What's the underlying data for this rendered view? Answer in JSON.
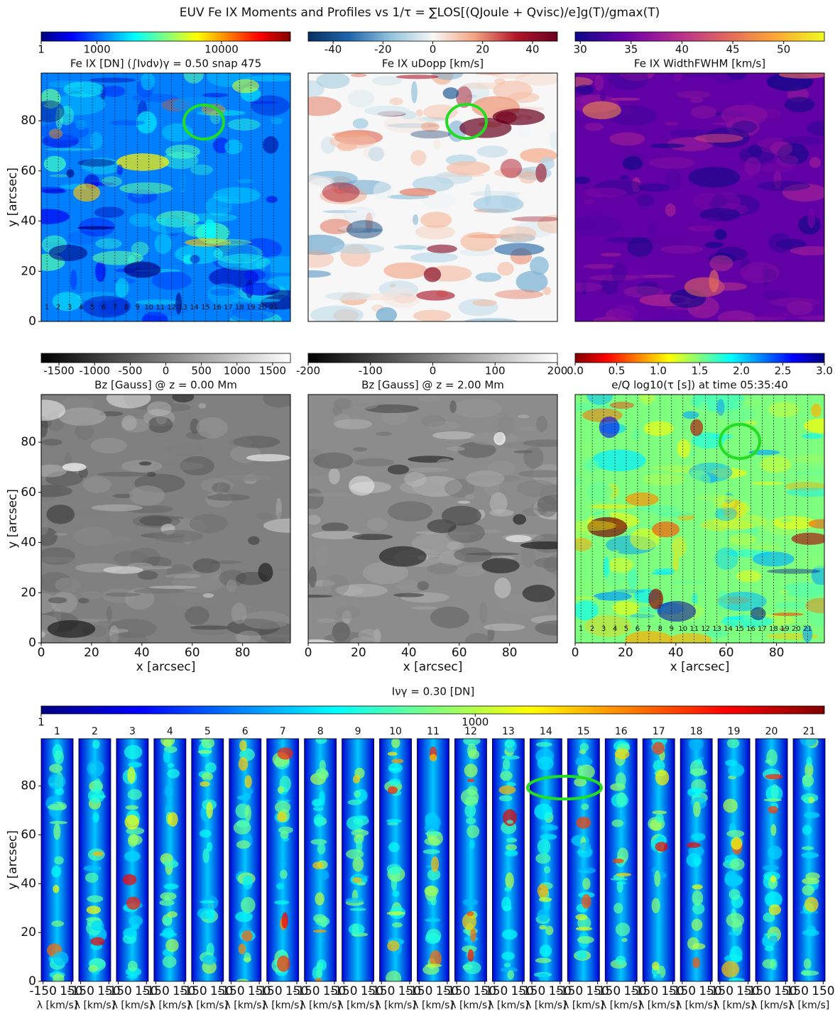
{
  "figure_title": "EUV Fe IX Moments and Profiles vs 1/τ = ∑LOS[(QJoule + Qvisc)/e]g(T)/gmax(T)",
  "chart_data": [
    {
      "type": "image",
      "title": "Fe IX [DN] (∫Iνdν)γ = 0.50 snap 475",
      "colormap": "jet",
      "colorbar": {
        "lim": [
          1,
          19000
        ],
        "gamma": 0.5,
        "ticks": [
          1,
          1000,
          10000
        ]
      },
      "xlim": [
        0,
        99
      ],
      "ylim": [
        0,
        99
      ],
      "yticks": [
        0,
        20,
        40,
        60,
        80
      ],
      "ylabel": "y [arcsec]",
      "slit_labels": [
        1,
        2,
        3,
        4,
        5,
        6,
        7,
        8,
        9,
        10,
        11,
        12,
        13,
        14,
        15,
        16,
        17,
        18,
        19,
        20,
        21
      ]
    },
    {
      "type": "image",
      "title": "Fe IX uDopp [km/s]",
      "colormap": "rdbu",
      "colorbar": {
        "lim": [
          -50,
          50
        ],
        "ticks": [
          -40,
          -20,
          0,
          20,
          40
        ]
      },
      "xlim": [
        0,
        99
      ],
      "ylim": [
        0,
        99
      ]
    },
    {
      "type": "image",
      "title": "Fe IX WidthFWHM [km/s]",
      "colormap": "plasma",
      "colorbar": {
        "lim": [
          29.5,
          54
        ],
        "ticks": [
          30,
          35,
          40,
          45,
          50
        ]
      },
      "xlim": [
        0,
        99
      ],
      "ylim": [
        0,
        99
      ]
    },
    {
      "type": "image",
      "title": "Bz [Gauss] @ z = 0.00 Mm",
      "colormap": "gray",
      "colorbar": {
        "lim": [
          -1750,
          1750
        ],
        "ticks": [
          -1500,
          -1000,
          -500,
          0,
          500,
          1000,
          1500
        ]
      },
      "xlim": [
        0,
        99
      ],
      "ylim": [
        0,
        99
      ],
      "xticks": [
        0,
        20,
        40,
        60,
        80
      ],
      "yticks": [
        0,
        20,
        40,
        60,
        80
      ],
      "xlabel": "x [arcsec]",
      "ylabel": "y [arcsec]"
    },
    {
      "type": "image",
      "title": "Bz [Gauss] @ z = 2.00 Mm",
      "colormap": "gray",
      "colorbar": {
        "lim": [
          -200,
          200
        ],
        "ticks": [
          -200,
          -100,
          0,
          100,
          200
        ]
      },
      "xlim": [
        0,
        99
      ],
      "ylim": [
        0,
        99
      ],
      "xticks": [
        0,
        20,
        40,
        60,
        80
      ],
      "xlabel": "x [arcsec]"
    },
    {
      "type": "image",
      "title": "e/Q log10(τ [s]) at time  05:35:40",
      "colormap": "jet_r",
      "colorbar": {
        "lim": [
          0,
          3
        ],
        "ticks": [
          {
            "value": 0,
            "label": "0.0"
          },
          0.5,
          {
            "value": 1,
            "label": "1.0"
          },
          1.5,
          {
            "value": 2,
            "label": "2.0"
          },
          2.5,
          {
            "value": 3,
            "label": "3.0"
          }
        ]
      },
      "xlim": [
        0,
        99
      ],
      "ylim": [
        0,
        99
      ],
      "xticks": [
        0,
        20,
        40,
        60,
        80
      ],
      "xlabel": "x [arcsec]",
      "slit_labels": [
        1,
        2,
        3,
        4,
        5,
        6,
        7,
        8,
        9,
        10,
        11,
        12,
        13,
        14,
        15,
        16,
        17,
        18,
        19,
        20,
        21
      ]
    },
    {
      "type": "strips",
      "colormap": "jet",
      "colorbar": {
        "label": "Iνγ = 0.30 [DN]",
        "lim": [
          1,
          5900
        ],
        "gamma": 0.3,
        "ticks": [
          1,
          1000
        ]
      },
      "panels": [
        1,
        2,
        3,
        4,
        5,
        6,
        7,
        8,
        9,
        10,
        11,
        12,
        13,
        14,
        15,
        16,
        17,
        18,
        19,
        20,
        21
      ],
      "xlim": [
        -170,
        170
      ],
      "xticks": [
        -150,
        150
      ],
      "xlabel": "λ [km/s]",
      "ylim": [
        0,
        99.4
      ],
      "yticks": [
        0,
        20,
        40,
        60,
        80
      ],
      "ylabel": "y [arcsec]"
    }
  ]
}
